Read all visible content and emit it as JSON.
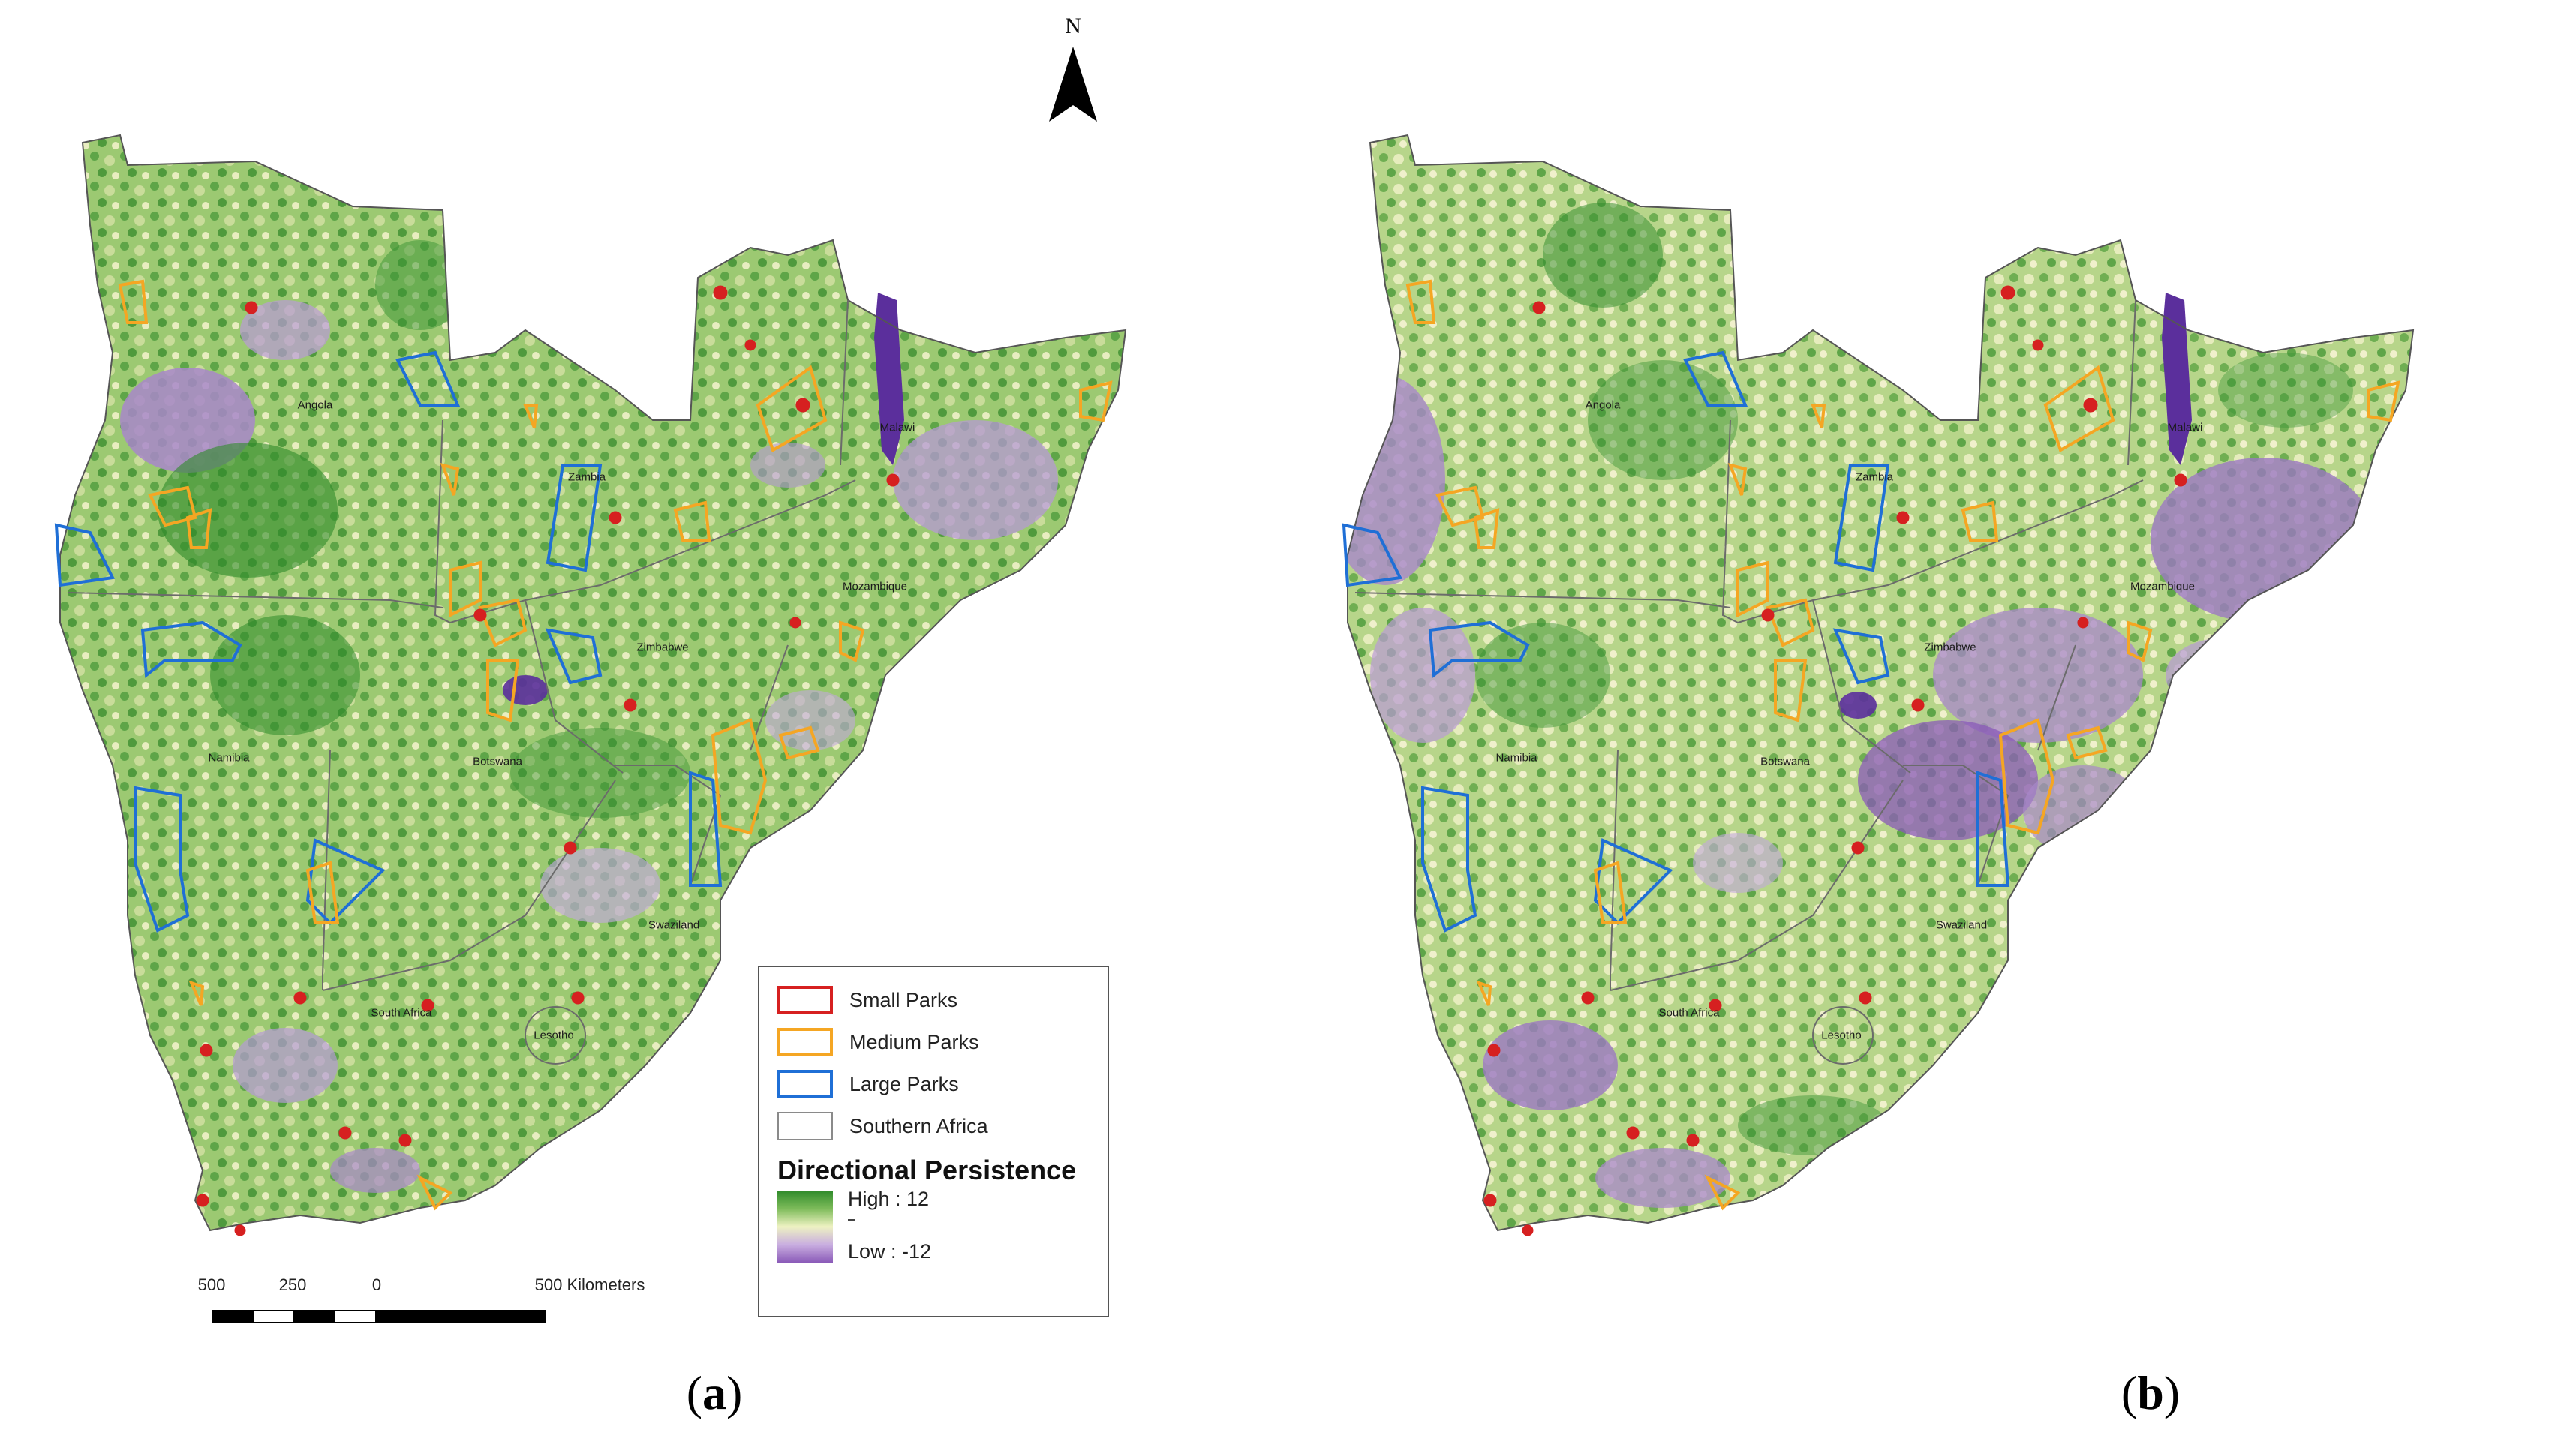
{
  "panels": [
    {
      "id": "a",
      "caption_letter": "a"
    },
    {
      "id": "b",
      "caption_letter": "b"
    }
  ],
  "country_labels": [
    "Angola",
    "Zambia",
    "Malawi",
    "Mozambique",
    "Zimbabwe",
    "Namibia",
    "Botswana",
    "Swaziland",
    "South Africa",
    "Lesotho"
  ],
  "north_arrow": {
    "label": "N"
  },
  "scale_bar": {
    "ticks": [
      "500",
      "250",
      "0",
      "500 Kilometers"
    ]
  },
  "legend": {
    "items": [
      {
        "label": "Small Parks",
        "color": "#d62020"
      },
      {
        "label": "Medium Parks",
        "color": "#f5a623"
      },
      {
        "label": "Large Parks",
        "color": "#1f6fd6"
      },
      {
        "label": "Southern Africa",
        "color": "#8a8a8a"
      }
    ],
    "title": "Directional Persistence",
    "high_label": "High : 12",
    "low_label": "Low : -12",
    "ramp_colors": {
      "high": "#2e8a2a",
      "mid": "#eef2c2",
      "low": "#8a5ab8"
    }
  }
}
